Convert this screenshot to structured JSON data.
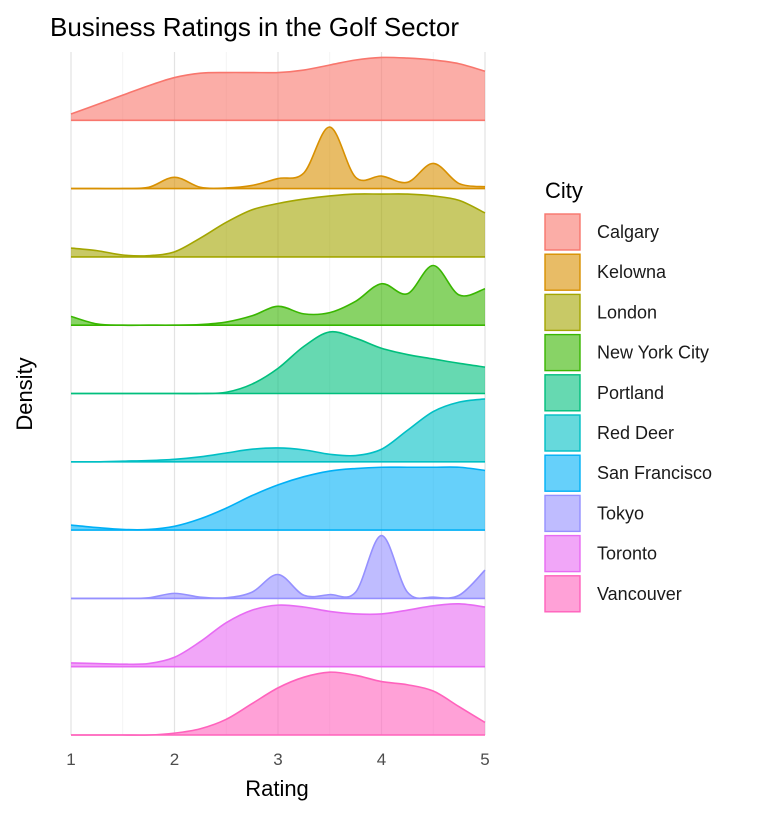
{
  "chart_data": {
    "type": "ridgeline-density",
    "title": "Business Ratings in the Golf Sector",
    "xlabel": "Rating",
    "ylabel": "Density",
    "xlim": [
      1,
      5
    ],
    "x_ticks": [
      1,
      2,
      3,
      4,
      5
    ],
    "grid": true,
    "legend": {
      "title": "City",
      "placement": "right"
    },
    "x": [
      1.0,
      1.25,
      1.5,
      1.75,
      2.0,
      2.25,
      2.5,
      2.75,
      3.0,
      3.25,
      3.5,
      3.75,
      4.0,
      4.25,
      4.5,
      4.75,
      5.0
    ],
    "series": [
      {
        "name": "Calgary",
        "color": "#F8766D",
        "values": [
          0.1,
          0.25,
          0.4,
          0.55,
          0.68,
          0.75,
          0.76,
          0.76,
          0.76,
          0.8,
          0.88,
          0.96,
          1.0,
          0.99,
          0.96,
          0.9,
          0.78
        ]
      },
      {
        "name": "Kelowna",
        "color": "#D89000",
        "values": [
          0.0,
          0.0,
          0.0,
          0.02,
          0.18,
          0.02,
          0.01,
          0.05,
          0.16,
          0.25,
          0.98,
          0.18,
          0.2,
          0.1,
          0.4,
          0.08,
          0.03
        ]
      },
      {
        "name": "London",
        "color": "#A3A500",
        "values": [
          0.14,
          0.1,
          0.03,
          0.02,
          0.08,
          0.3,
          0.55,
          0.75,
          0.85,
          0.92,
          0.97,
          1.0,
          1.0,
          1.0,
          0.97,
          0.9,
          0.7
        ]
      },
      {
        "name": "New York City",
        "color": "#39B600",
        "values": [
          0.14,
          0.02,
          0.0,
          0.0,
          0.0,
          0.01,
          0.05,
          0.15,
          0.3,
          0.18,
          0.2,
          0.38,
          0.66,
          0.5,
          0.95,
          0.48,
          0.58
        ]
      },
      {
        "name": "Portland",
        "color": "#00BF7D",
        "values": [
          0.0,
          0.0,
          0.0,
          0.0,
          0.0,
          0.0,
          0.02,
          0.15,
          0.4,
          0.75,
          0.98,
          0.88,
          0.72,
          0.62,
          0.55,
          0.48,
          0.42
        ]
      },
      {
        "name": "Red Deer",
        "color": "#00BFC4",
        "values": [
          0.0,
          0.0,
          0.01,
          0.02,
          0.04,
          0.08,
          0.14,
          0.2,
          0.22,
          0.19,
          0.12,
          0.1,
          0.2,
          0.5,
          0.8,
          0.95,
          1.0
        ]
      },
      {
        "name": "San Francisco",
        "color": "#00B0F6",
        "values": [
          0.08,
          0.04,
          0.01,
          0.01,
          0.06,
          0.18,
          0.35,
          0.55,
          0.72,
          0.85,
          0.94,
          0.98,
          1.0,
          1.0,
          1.0,
          1.0,
          0.95
        ]
      },
      {
        "name": "Tokyo",
        "color": "#9590FF",
        "values": [
          0.0,
          0.0,
          0.0,
          0.01,
          0.08,
          0.02,
          0.01,
          0.1,
          0.38,
          0.05,
          0.06,
          0.1,
          1.0,
          0.1,
          0.02,
          0.05,
          0.45
        ]
      },
      {
        "name": "Toronto",
        "color": "#E76BF3",
        "values": [
          0.06,
          0.05,
          0.04,
          0.05,
          0.15,
          0.4,
          0.7,
          0.9,
          0.98,
          0.95,
          0.88,
          0.84,
          0.84,
          0.9,
          0.97,
          1.0,
          0.95
        ]
      },
      {
        "name": "Vancouver",
        "color": "#FF62BC",
        "values": [
          0.0,
          0.0,
          0.0,
          0.0,
          0.03,
          0.1,
          0.25,
          0.5,
          0.75,
          0.92,
          1.0,
          0.95,
          0.85,
          0.8,
          0.7,
          0.45,
          0.2
        ]
      }
    ]
  }
}
